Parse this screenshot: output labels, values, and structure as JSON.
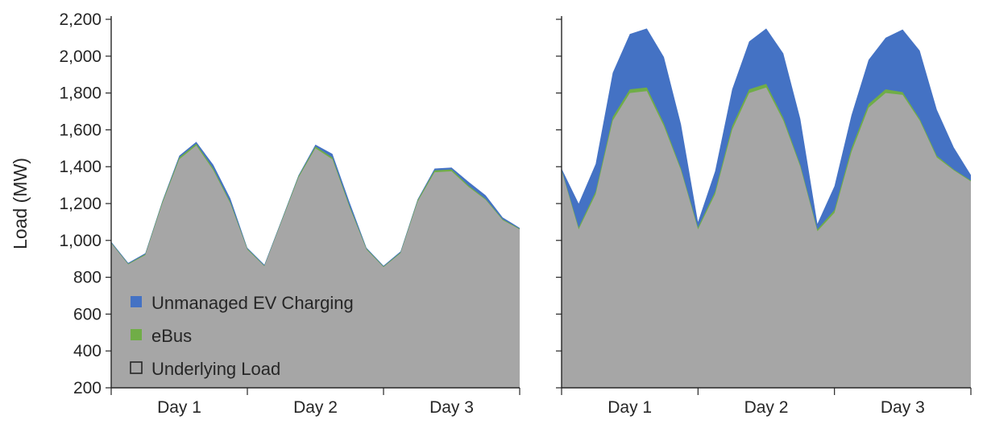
{
  "chart_data": {
    "type": "area",
    "ylabel": "Load (MW)",
    "ylim": [
      200,
      2200
    ],
    "yticks": [
      200,
      400,
      600,
      800,
      1000,
      1200,
      1400,
      1600,
      1800,
      2000,
      2200
    ],
    "ytick_labels": [
      "200",
      "400",
      "600",
      "800",
      "1,000",
      "1,200",
      "1,400",
      "1,600",
      "1,800",
      "2,000",
      "2,200"
    ],
    "categories": [
      "Day 1",
      "Day 2",
      "Day 3"
    ],
    "colors": {
      "Unmanaged EV Charging": "#4472c4",
      "eBus": "#70ad47",
      "Underlying Load": "#a6a6a6"
    },
    "legend": {
      "position": "bottom-left of left panel",
      "entries": [
        "Unmanaged EV Charging",
        "eBus",
        "Underlying Load"
      ]
    },
    "panels": [
      {
        "name": "left",
        "x": [
          0,
          3,
          6,
          9,
          12,
          15,
          18,
          21,
          24,
          27,
          30,
          33,
          36,
          39,
          42,
          45,
          48,
          51,
          54,
          57,
          60,
          63,
          66,
          69,
          72
        ],
        "series": [
          {
            "name": "Underlying Load",
            "values": [
              985,
              870,
              920,
              1200,
              1440,
              1515,
              1380,
              1200,
              950,
              860,
              1100,
              1340,
              1500,
              1440,
              1180,
              950,
              855,
              930,
              1210,
              1370,
              1375,
              1290,
              1220,
              1110,
              1060
            ]
          },
          {
            "name": "eBus",
            "values": [
              3,
              3,
              5,
              8,
              10,
              10,
              10,
              8,
              5,
              3,
              5,
              8,
              10,
              10,
              8,
              5,
              3,
              5,
              8,
              10,
              10,
              8,
              5,
              5,
              3
            ]
          },
          {
            "name": "Unmanaged EV Charging",
            "values": [
              5,
              5,
              5,
              5,
              10,
              10,
              20,
              20,
              5,
              5,
              5,
              5,
              10,
              20,
              20,
              5,
              5,
              5,
              5,
              10,
              10,
              20,
              20,
              10,
              5
            ]
          }
        ]
      },
      {
        "name": "right",
        "x": [
          0,
          3,
          6,
          9,
          12,
          15,
          18,
          21,
          24,
          27,
          30,
          33,
          36,
          39,
          42,
          45,
          48,
          51,
          54,
          57,
          60,
          63,
          66,
          69,
          72
        ],
        "series": [
          {
            "name": "Underlying Load",
            "values": [
              1380,
              1060,
              1250,
              1650,
              1800,
              1810,
              1620,
              1380,
              1060,
              1250,
              1600,
              1800,
              1830,
              1650,
              1400,
              1050,
              1150,
              1480,
              1720,
              1800,
              1790,
              1650,
              1450,
              1380,
              1320
            ]
          },
          {
            "name": "eBus",
            "values": [
              5,
              10,
              15,
              20,
              20,
              20,
              15,
              10,
              10,
              15,
              20,
              20,
              20,
              15,
              10,
              10,
              15,
              20,
              20,
              20,
              15,
              10,
              10,
              5,
              5
            ]
          },
          {
            "name": "Unmanaged EV Charging",
            "values": [
              5,
              130,
              150,
              240,
              300,
              320,
              360,
              240,
              30,
              110,
              200,
              260,
              300,
              350,
              250,
              30,
              130,
              180,
              240,
              280,
              340,
              370,
              250,
              120,
              30
            ]
          }
        ]
      }
    ]
  }
}
